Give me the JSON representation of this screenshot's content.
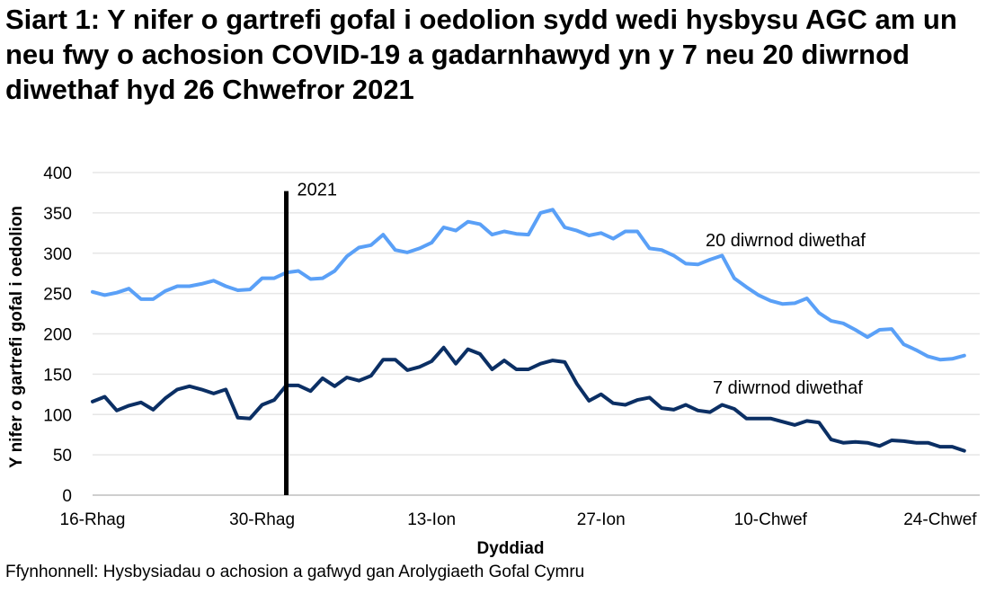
{
  "chart_data": {
    "type": "line",
    "title": "Siart 1: Y nifer o gartrefi gofal i oedolion sydd wedi hysbysu AGC am un neu fwy o achosion COVID-19 a gadarnhawyd yn y 7 neu 20 diwrnod diwethaf hyd 26 Chwefror 2021",
    "xlabel": "Dyddiad",
    "ylabel": "Y nifer o gartrefi gofal i oedolion",
    "source": "Ffynhonnell: Hysbysiadau o achosion a gafwyd gan Arolygiaeth Gofal Cymru",
    "x_start": "2020-12-16",
    "x_end": "2021-02-26",
    "x_ticks": [
      {
        "date": "2020-12-16",
        "label": "16-Rhag"
      },
      {
        "date": "2020-12-30",
        "label": "30-Rhag"
      },
      {
        "date": "2021-01-13",
        "label": "13-Ion"
      },
      {
        "date": "2021-01-27",
        "label": "27-Ion"
      },
      {
        "date": "2021-02-10",
        "label": "10-Chwef"
      },
      {
        "date": "2021-02-24",
        "label": "24-Chwef"
      }
    ],
    "ylim": [
      0,
      400
    ],
    "y_ticks": [
      0,
      50,
      100,
      150,
      200,
      250,
      300,
      350,
      400
    ],
    "grid": true,
    "annotation": {
      "label": "2021",
      "date": "2021-01-01",
      "top_value": 377,
      "color": "#000000"
    },
    "series": [
      {
        "name": "20 diwrnod diwethaf",
        "color": "#5aa0f7",
        "values": [
          252,
          248,
          251,
          256,
          243,
          243,
          253,
          259,
          259,
          262,
          266,
          259,
          254,
          255,
          269,
          269,
          276,
          278,
          268,
          269,
          278,
          296,
          307,
          310,
          323,
          304,
          301,
          306,
          313,
          332,
          328,
          339,
          336,
          323,
          327,
          324,
          323,
          350,
          354,
          332,
          328,
          322,
          325,
          318,
          327,
          327,
          306,
          304,
          297,
          287,
          286,
          292,
          297,
          269,
          258,
          248,
          241,
          237,
          238,
          244,
          226,
          216,
          213,
          205,
          196,
          205,
          206,
          187,
          180,
          172,
          168,
          169,
          173
        ]
      },
      {
        "name": "7 diwrnod diwethaf",
        "color": "#0b2f64",
        "values": [
          116,
          122,
          105,
          111,
          115,
          106,
          120,
          131,
          135,
          131,
          126,
          131,
          96,
          95,
          112,
          118,
          136,
          136,
          129,
          145,
          135,
          146,
          142,
          148,
          168,
          168,
          155,
          159,
          166,
          183,
          163,
          181,
          175,
          156,
          167,
          156,
          156,
          163,
          167,
          165,
          138,
          117,
          125,
          114,
          112,
          118,
          121,
          108,
          106,
          112,
          105,
          103,
          112,
          107,
          95,
          95,
          95,
          91,
          87,
          92,
          90,
          69,
          65,
          66,
          65,
          61,
          68,
          67,
          65,
          65,
          60,
          60,
          55
        ]
      }
    ]
  }
}
